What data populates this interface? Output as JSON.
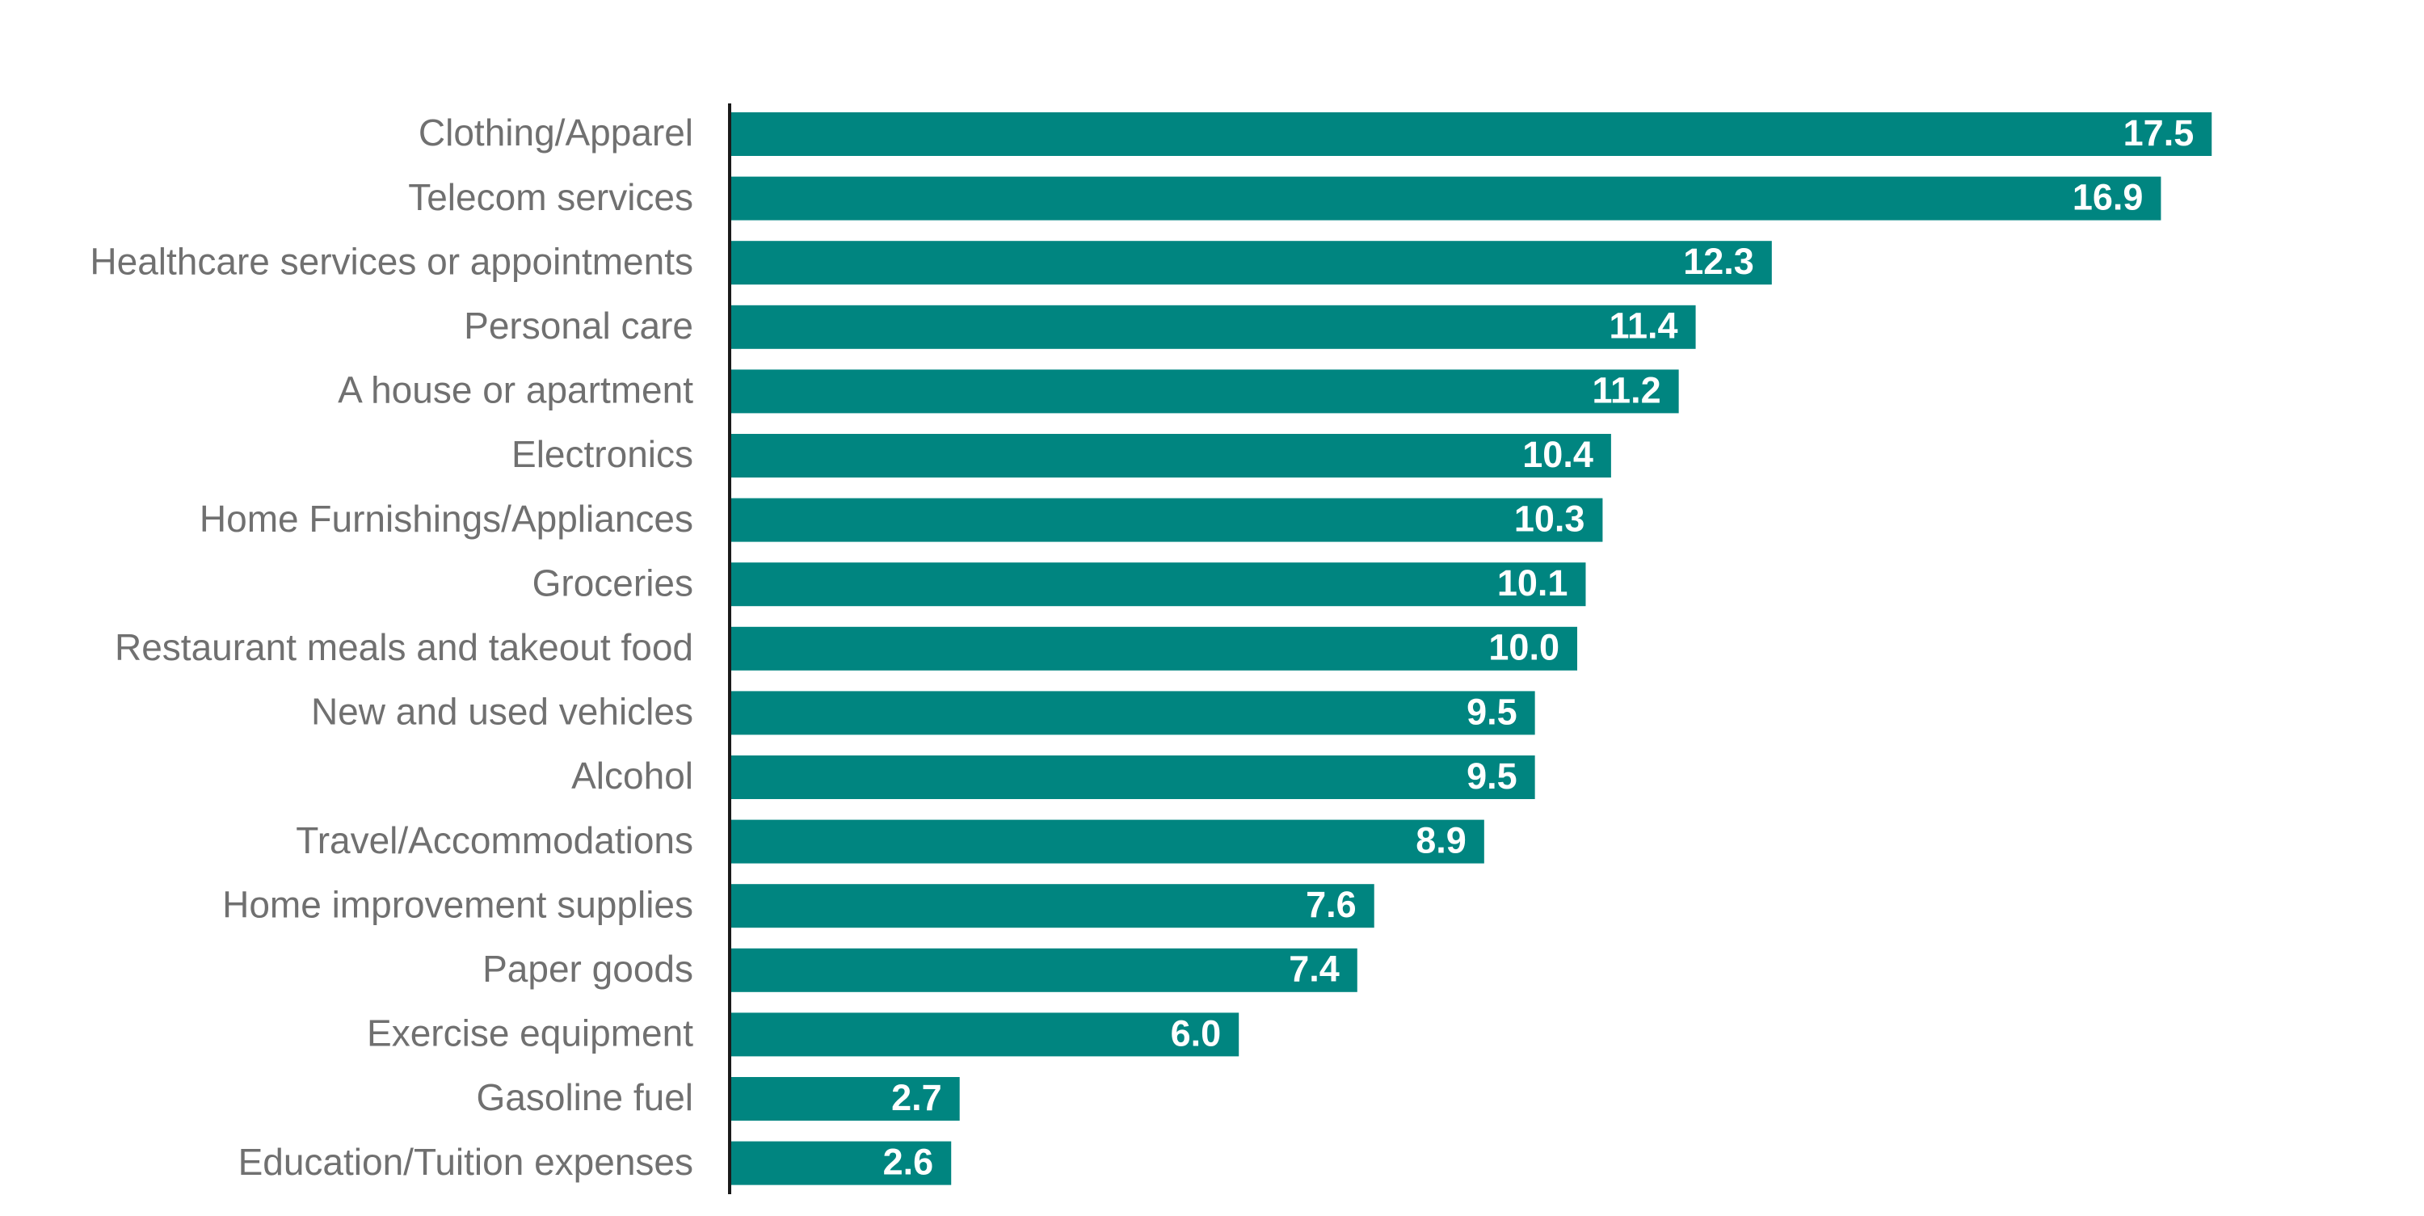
{
  "chart_data": {
    "type": "bar",
    "orientation": "horizontal",
    "categories": [
      "Clothing/Apparel",
      "Telecom services",
      "Healthcare services or appointments",
      "Personal care",
      "A house or apartment",
      "Electronics",
      "Home Furnishings/Appliances",
      "Groceries",
      "Restaurant meals and takeout food",
      "New and used vehicles",
      "Alcohol",
      "Travel/Accommodations",
      "Home improvement supplies",
      "Paper goods",
      "Exercise equipment",
      "Gasoline fuel",
      "Education/Tuition expenses"
    ],
    "values": [
      17.5,
      16.9,
      12.3,
      11.4,
      11.2,
      10.4,
      10.3,
      10.1,
      10.0,
      9.5,
      9.5,
      8.9,
      7.6,
      7.4,
      6.0,
      2.7,
      2.6
    ],
    "value_labels": [
      "17.5",
      "16.9",
      "12.3",
      "11.4",
      "11.2",
      "10.4",
      "10.3",
      "10.1",
      "10.0",
      "9.5",
      "9.5",
      "8.9",
      "7.6",
      "7.4",
      "6.0",
      "2.7",
      "2.6"
    ],
    "xlim": [
      0,
      20
    ],
    "grid": false,
    "legend": "none",
    "colors": {
      "bar": "#008580",
      "axis": "#1a1a1a",
      "category_label": "#707070",
      "value_label": "#ffffff"
    }
  }
}
